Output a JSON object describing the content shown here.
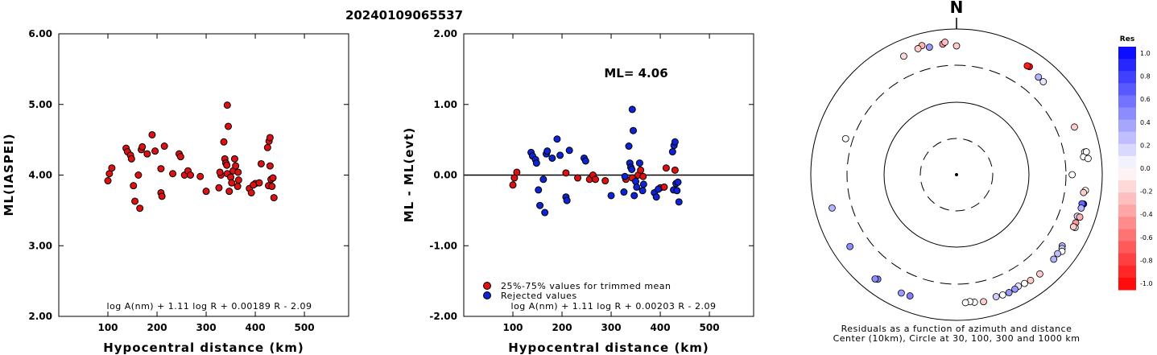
{
  "title": "20240109065537",
  "colors": {
    "red": "#dd1111",
    "blue": "#0c24d4",
    "frame": "#000000"
  },
  "panel1": {
    "ylabel": "ML(IASPEI)",
    "xlabel": "Hypocentral distance (km)",
    "formula": "log A(nm) + 1.11 log R + 0.00189 R - 2.09",
    "xlim": [
      0,
      590
    ],
    "ylim": [
      2.0,
      6.0
    ],
    "xticks": [
      100,
      200,
      300,
      400,
      500
    ],
    "xtick_labels": [
      "100",
      "200",
      "300",
      "400",
      "500"
    ],
    "yticks": [
      2.0,
      3.0,
      4.0,
      5.0,
      6.0
    ],
    "ytick_labels": [
      "2.00",
      "3.00",
      "4.00",
      "5.00",
      "6.00"
    ]
  },
  "panel2": {
    "ylabel": "ML - ML(evt)",
    "xlabel": "Hypocentral distance (km)",
    "formula": "log A(nm) + 1.11 log R + 0.00203 R - 2.09",
    "ml_label": "ML= 4.06",
    "legend": [
      "25%-75% values for trimmed mean",
      "Rejected values"
    ],
    "xlim": [
      0,
      590
    ],
    "ylim": [
      -2.0,
      2.0
    ],
    "xticks": [
      100,
      200,
      300,
      400,
      500
    ],
    "xtick_labels": [
      "100",
      "200",
      "300",
      "400",
      "500"
    ],
    "yticks": [
      -2.0,
      -1.0,
      0.0,
      1.0,
      2.0
    ],
    "ytick_labels": [
      "-2.00",
      "-1.00",
      "0.00",
      "1.00",
      "2.00"
    ]
  },
  "polar": {
    "north_label": "N",
    "caption_line1": "Residuals as a function of azimuth and distance",
    "caption_line2": "Center (10km), Circle at 30, 100, 300 and 1000 km",
    "colorbar_title": "Res",
    "colorbar_ticks": [
      "1.0",
      "0.8",
      "0.6",
      "0.4",
      "0.2",
      "0.0",
      "-0.2",
      "-0.4",
      "-0.6",
      "-0.8",
      "-1.0"
    ]
  },
  "chart_data": {
    "type": "scatter",
    "ml_event": 4.06,
    "series": [
      {
        "name": "25%-75% values for trimmed mean",
        "color": "#dd1111",
        "points": [
          [
            100,
            3.92
          ],
          [
            103,
            4.02
          ],
          [
            108,
            4.1
          ],
          [
            208,
            4.09
          ],
          [
            232,
            4.02
          ],
          [
            256,
            4.0
          ],
          [
            263,
            4.06
          ],
          [
            268,
            4.0
          ],
          [
            288,
            3.98
          ],
          [
            330,
            4.0
          ],
          [
            343,
            4.02
          ],
          [
            355,
            4.06
          ],
          [
            360,
            4.13
          ],
          [
            365,
            4.04
          ],
          [
            400,
            3.88
          ],
          [
            408,
            3.89
          ],
          [
            412,
            4.16
          ],
          [
            430,
            4.13
          ]
        ]
      },
      {
        "name": "Rejected values",
        "color": "#0c24d4",
        "points": [
          [
            137,
            4.38
          ],
          [
            140,
            4.33
          ],
          [
            146,
            4.28
          ],
          [
            148,
            4.23
          ],
          [
            152,
            3.85
          ],
          [
            155,
            3.63
          ],
          [
            162,
            4.0
          ],
          [
            165,
            3.53
          ],
          [
            168,
            4.36
          ],
          [
            170,
            4.4
          ],
          [
            180,
            4.3
          ],
          [
            190,
            4.57
          ],
          [
            196,
            4.34
          ],
          [
            208,
            3.75
          ],
          [
            210,
            3.7
          ],
          [
            215,
            4.41
          ],
          [
            245,
            4.3
          ],
          [
            248,
            4.26
          ],
          [
            300,
            3.77
          ],
          [
            326,
            3.82
          ],
          [
            328,
            4.04
          ],
          [
            336,
            4.47
          ],
          [
            338,
            4.23
          ],
          [
            340,
            4.17
          ],
          [
            342,
            4.14
          ],
          [
            343,
            4.99
          ],
          [
            345,
            4.69
          ],
          [
            347,
            3.77
          ],
          [
            350,
            3.97
          ],
          [
            352,
            3.89
          ],
          [
            358,
            4.23
          ],
          [
            364,
            3.84
          ],
          [
            366,
            3.93
          ],
          [
            388,
            3.81
          ],
          [
            392,
            3.75
          ],
          [
            396,
            3.86
          ],
          [
            425,
            4.39
          ],
          [
            427,
            3.85
          ],
          [
            428,
            4.48
          ],
          [
            430,
            4.53
          ],
          [
            432,
            3.94
          ],
          [
            434,
            3.84
          ],
          [
            436,
            3.96
          ],
          [
            438,
            3.68
          ]
        ]
      }
    ],
    "polar_points": [
      {
        "az": 336,
        "dist": 588,
        "res": -0.15
      },
      {
        "az": 345,
        "dist": 670,
        "res": -0.3
      },
      {
        "az": 343,
        "dist": 630,
        "res": -0.2
      },
      {
        "az": 348,
        "dist": 600,
        "res": 0.4
      },
      {
        "az": 354,
        "dist": 620,
        "res": -0.4
      },
      {
        "az": 355,
        "dist": 655,
        "res": -0.25
      },
      {
        "az": 0,
        "dist": 570,
        "res": -0.2
      },
      {
        "az": 34,
        "dist": 600,
        "res": -1.0
      },
      {
        "az": 33,
        "dist": 590,
        "res": -0.9
      },
      {
        "az": 40,
        "dist": 545,
        "res": 0.3
      },
      {
        "az": 43,
        "dist": 540,
        "res": 0.1
      },
      {
        "az": 68,
        "dist": 540,
        "res": -0.2
      },
      {
        "az": 80,
        "dist": 595,
        "res": 0.0
      },
      {
        "az": 82,
        "dist": 560,
        "res": 0.0
      },
      {
        "az": 80,
        "dist": 630,
        "res": 0.0
      },
      {
        "az": 83,
        "dist": 645,
        "res": 0.0
      },
      {
        "az": 90,
        "dist": 368,
        "res": 0.0
      },
      {
        "az": 97,
        "dist": 590,
        "res": 0.0
      },
      {
        "az": 98,
        "dist": 560,
        "res": -0.2
      },
      {
        "az": 103,
        "dist": 600,
        "res": 1.0
      },
      {
        "az": 103,
        "dist": 570,
        "res": 0.6
      },
      {
        "az": 105,
        "dist": 575,
        "res": 0.3
      },
      {
        "az": 109,
        "dist": 550,
        "res": 0.2
      },
      {
        "az": 109,
        "dist": 600,
        "res": -0.3
      },
      {
        "az": 112,
        "dist": 565,
        "res": -0.4
      },
      {
        "az": 114,
        "dist": 590,
        "res": 0.0
      },
      {
        "az": 114,
        "dist": 555,
        "res": -0.2
      },
      {
        "az": 124,
        "dist": 545,
        "res": 0.3
      },
      {
        "az": 125,
        "dist": 570,
        "res": 0.2
      },
      {
        "az": 126,
        "dist": 600,
        "res": 0.0
      },
      {
        "az": 128,
        "dist": 560,
        "res": 0.25
      },
      {
        "az": 131,
        "dist": 570,
        "res": 0.3
      },
      {
        "az": 140,
        "dist": 585,
        "res": -0.2
      },
      {
        "az": 145,
        "dist": 575,
        "res": -0.2
      },
      {
        "az": 148,
        "dist": 560,
        "res": 0.0
      },
      {
        "az": 151,
        "dist": 545,
        "res": 0.1
      },
      {
        "az": 153,
        "dist": 565,
        "res": 0.4
      },
      {
        "az": 156,
        "dist": 575,
        "res": 0.4
      },
      {
        "az": 159,
        "dist": 570,
        "res": 0.0
      },
      {
        "az": 162,
        "dist": 560,
        "res": 0.2
      },
      {
        "az": 168,
        "dist": 590,
        "res": -0.2
      },
      {
        "az": 172,
        "dist": 570,
        "res": 0.0
      },
      {
        "az": 174,
        "dist": 548,
        "res": 0.0
      },
      {
        "az": 176,
        "dist": 560,
        "res": 0.0
      },
      {
        "az": 201,
        "dist": 590,
        "res": 0.5
      },
      {
        "az": 205,
        "dist": 605,
        "res": 0.4
      },
      {
        "az": 217,
        "dist": 610,
        "res": 0.5
      },
      {
        "az": 218,
        "dist": 640,
        "res": 0.45
      },
      {
        "az": 236,
        "dist": 565,
        "res": 0.45
      },
      {
        "az": 255,
        "dist": 570,
        "res": 0.3
      },
      {
        "az": 288,
        "dist": 380,
        "res": 0.0
      }
    ]
  }
}
